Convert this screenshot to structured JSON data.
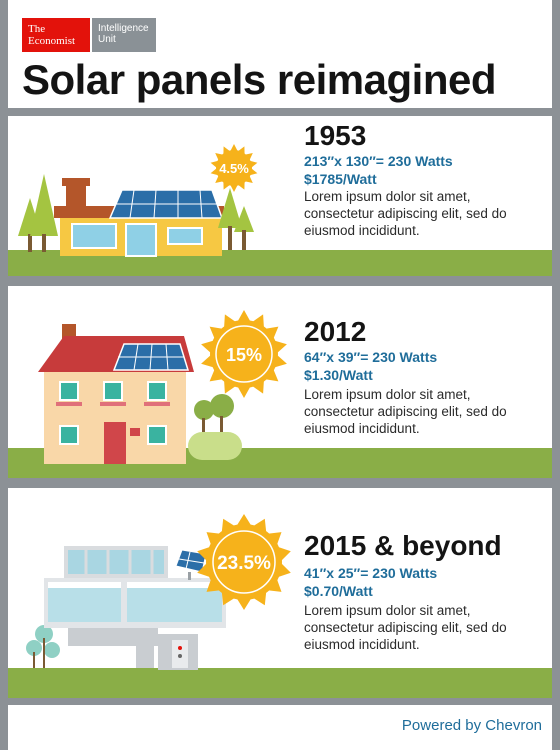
{
  "header": {
    "logo_line1": "The",
    "logo_line2": "Economist",
    "unit_line1": "Intelligence",
    "unit_line2": "Unit",
    "title": "Solar panels reimagined"
  },
  "panels": [
    {
      "year": "1953",
      "efficiency": "4.5%",
      "dimensions": "213″x 130″= 230 Watts",
      "price": "$1785/Watt",
      "description": "Lorem ipsum dolor sit amet, consectetur adipiscing elit, sed do eiusmod incididunt."
    },
    {
      "year": "2012",
      "efficiency": "15%",
      "dimensions": "64″x 39″= 230 Watts",
      "price": "$1.30/Watt",
      "description": "Lorem ipsum dolor sit amet, consectetur adipiscing elit, sed do eiusmod incididunt."
    },
    {
      "year": "2015 & beyond",
      "efficiency": "23.5%",
      "dimensions": "41″x 25″= 230 Watts",
      "price": "$0.70/Watt",
      "description": "Lorem ipsum dolor sit amet, consectetur adipiscing elit, sed do eiusmod incididunt."
    }
  ],
  "footer": {
    "powered_by": "Powered by Chevron"
  },
  "colors": {
    "ground": "#8aae47",
    "sun": "#f6b21b",
    "accent_blue": "#1f6d9a",
    "economist_red": "#e3120b",
    "frame_grey": "#8c9196"
  }
}
